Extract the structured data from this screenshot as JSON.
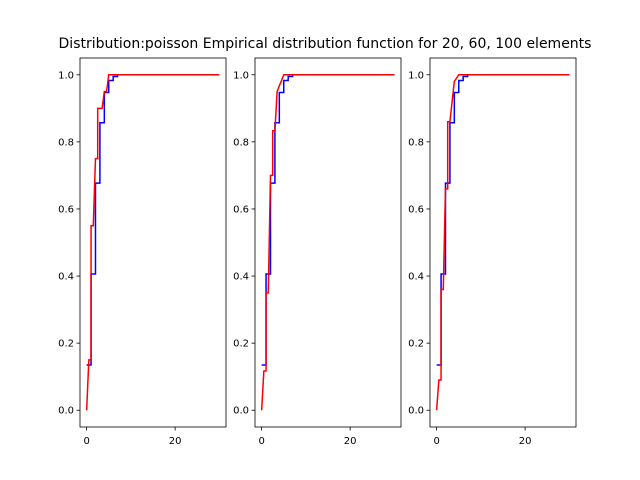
{
  "title": "Distribution:poisson Empirical distribution function for 20, 60, 100 elements",
  "colors": {
    "theoretical": "#0000ff",
    "empirical": "#ff0000"
  },
  "chart_data": [
    {
      "type": "line",
      "xlim": [
        -1.5,
        31.5
      ],
      "ylim": [
        -0.05,
        1.05
      ],
      "xticks": [
        0,
        20
      ],
      "yticks": [
        0.0,
        0.2,
        0.4,
        0.6,
        0.8,
        1.0
      ],
      "series": [
        {
          "color": "#0000ff",
          "x": [
            0,
            1,
            1,
            2,
            2,
            3,
            3,
            4,
            4,
            5,
            5,
            6,
            6,
            7,
            7,
            30
          ],
          "y": [
            0.135,
            0.135,
            0.406,
            0.406,
            0.677,
            0.677,
            0.857,
            0.857,
            0.947,
            0.947,
            0.983,
            0.983,
            0.995,
            0.995,
            1.0,
            1.0
          ]
        },
        {
          "color": "#ff0000",
          "x": [
            0,
            0.5,
            0.5,
            1,
            1,
            1.5,
            1.5,
            2,
            2,
            2.5,
            2.5,
            3,
            3,
            3.5,
            3.5,
            4,
            4,
            4.5,
            4.5,
            5,
            5,
            5.5,
            5.5,
            6,
            6,
            30
          ],
          "y": [
            0.0,
            0.15,
            0.15,
            0.15,
            0.55,
            0.55,
            0.55,
            0.75,
            0.75,
            0.75,
            0.9,
            0.9,
            0.9,
            0.9,
            0.9,
            0.95,
            0.95,
            0.95,
            0.95,
            1.0,
            1.0,
            1.0,
            1.0,
            1.0,
            1.0,
            1.0
          ]
        }
      ]
    },
    {
      "type": "line",
      "xlim": [
        -1.5,
        31.5
      ],
      "ylim": [
        -0.05,
        1.05
      ],
      "xticks": [
        0,
        20
      ],
      "yticks": [
        0.0,
        0.2,
        0.4,
        0.6,
        0.8,
        1.0
      ],
      "series": [
        {
          "color": "#0000ff",
          "x": [
            0,
            1,
            1,
            2,
            2,
            3,
            3,
            4,
            4,
            5,
            5,
            6,
            6,
            7,
            7,
            30
          ],
          "y": [
            0.135,
            0.135,
            0.406,
            0.406,
            0.677,
            0.677,
            0.857,
            0.857,
            0.947,
            0.947,
            0.983,
            0.983,
            0.995,
            0.995,
            1.0,
            1.0
          ]
        },
        {
          "color": "#ff0000",
          "x": [
            0,
            0.5,
            0.5,
            1,
            1,
            1.5,
            1.5,
            2,
            2,
            2.5,
            2.5,
            3,
            3,
            3.5,
            3.5,
            4,
            4,
            4.5,
            4.5,
            5,
            5,
            5.5,
            5.5,
            6,
            6,
            30
          ],
          "y": [
            0.0,
            0.117,
            0.117,
            0.117,
            0.35,
            0.35,
            0.35,
            0.7,
            0.7,
            0.7,
            0.833,
            0.833,
            0.833,
            0.95,
            0.95,
            0.967,
            0.967,
            0.983,
            0.983,
            1.0,
            1.0,
            1.0,
            1.0,
            1.0,
            1.0,
            1.0
          ]
        }
      ]
    },
    {
      "type": "line",
      "xlim": [
        -1.5,
        31.5
      ],
      "ylim": [
        -0.05,
        1.05
      ],
      "xticks": [
        0,
        20
      ],
      "yticks": [
        0.0,
        0.2,
        0.4,
        0.6,
        0.8,
        1.0
      ],
      "series": [
        {
          "color": "#0000ff",
          "x": [
            0,
            1,
            1,
            2,
            2,
            3,
            3,
            4,
            4,
            5,
            5,
            6,
            6,
            7,
            7,
            30
          ],
          "y": [
            0.135,
            0.135,
            0.406,
            0.406,
            0.677,
            0.677,
            0.857,
            0.857,
            0.947,
            0.947,
            0.983,
            0.983,
            0.995,
            0.995,
            1.0,
            1.0
          ]
        },
        {
          "color": "#ff0000",
          "x": [
            0,
            0.5,
            0.5,
            1,
            1,
            1.5,
            1.5,
            2,
            2,
            2.5,
            2.5,
            3,
            3,
            3.5,
            3.5,
            4,
            4,
            4.5,
            4.5,
            5,
            5,
            5.5,
            5.5,
            6,
            6,
            30
          ],
          "y": [
            0.0,
            0.09,
            0.09,
            0.09,
            0.36,
            0.36,
            0.36,
            0.66,
            0.66,
            0.66,
            0.86,
            0.86,
            0.86,
            0.92,
            0.92,
            0.98,
            0.98,
            0.99,
            0.99,
            1.0,
            1.0,
            1.0,
            1.0,
            1.0,
            1.0,
            1.0
          ]
        }
      ]
    }
  ]
}
